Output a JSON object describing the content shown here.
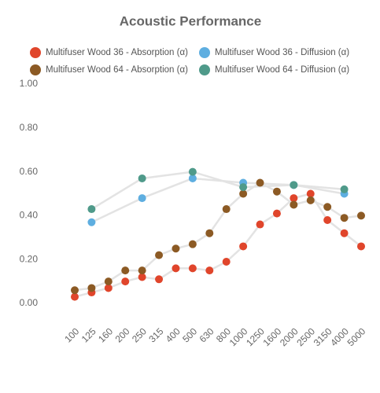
{
  "chart_data": {
    "type": "line",
    "title": "Acoustic Performance",
    "categories": [
      "100",
      "125",
      "160",
      "200",
      "250",
      "315",
      "400",
      "500",
      "630",
      "800",
      "1000",
      "1250",
      "1600",
      "2000",
      "2500",
      "3150",
      "4000",
      "5000"
    ],
    "series": [
      {
        "name": "Multifuser Wood 36 - Absorption (α)",
        "color": "#e0452b",
        "values": [
          0.03,
          0.05,
          0.07,
          0.1,
          0.12,
          0.11,
          0.16,
          0.16,
          0.15,
          0.19,
          0.26,
          0.36,
          0.41,
          0.48,
          0.5,
          0.38,
          0.32,
          0.26
        ]
      },
      {
        "name": "Multifuser Wood 36 - Diffusion (α)",
        "color": "#5eaee0",
        "values": [
          null,
          0.37,
          null,
          null,
          0.48,
          null,
          null,
          0.57,
          null,
          null,
          0.55,
          null,
          null,
          0.54,
          null,
          null,
          0.5,
          null
        ]
      },
      {
        "name": "Multifuser Wood 64 - Absorption (α)",
        "color": "#8c5a24",
        "values": [
          0.06,
          0.07,
          0.1,
          0.15,
          0.15,
          0.22,
          0.25,
          0.27,
          0.32,
          0.43,
          0.5,
          0.55,
          0.51,
          0.45,
          0.47,
          0.44,
          0.39,
          0.4
        ]
      },
      {
        "name": "Multifuser Wood 64 - Diffusion (α)",
        "color": "#4f9a8a",
        "values": [
          null,
          0.43,
          null,
          null,
          0.57,
          null,
          null,
          0.6,
          null,
          null,
          0.53,
          null,
          null,
          0.54,
          null,
          null,
          0.52,
          null
        ]
      }
    ],
    "ylim": [
      0,
      1
    ],
    "yticks": [
      {
        "value": 0,
        "label": "0.00"
      },
      {
        "value": 0.2,
        "label": "0.20"
      },
      {
        "value": 0.4,
        "label": "0.40"
      },
      {
        "value": 0.6,
        "label": "0.60"
      },
      {
        "value": 0.8,
        "label": "0.80"
      },
      {
        "value": 1,
        "label": "1.00"
      }
    ],
    "grid": false
  }
}
